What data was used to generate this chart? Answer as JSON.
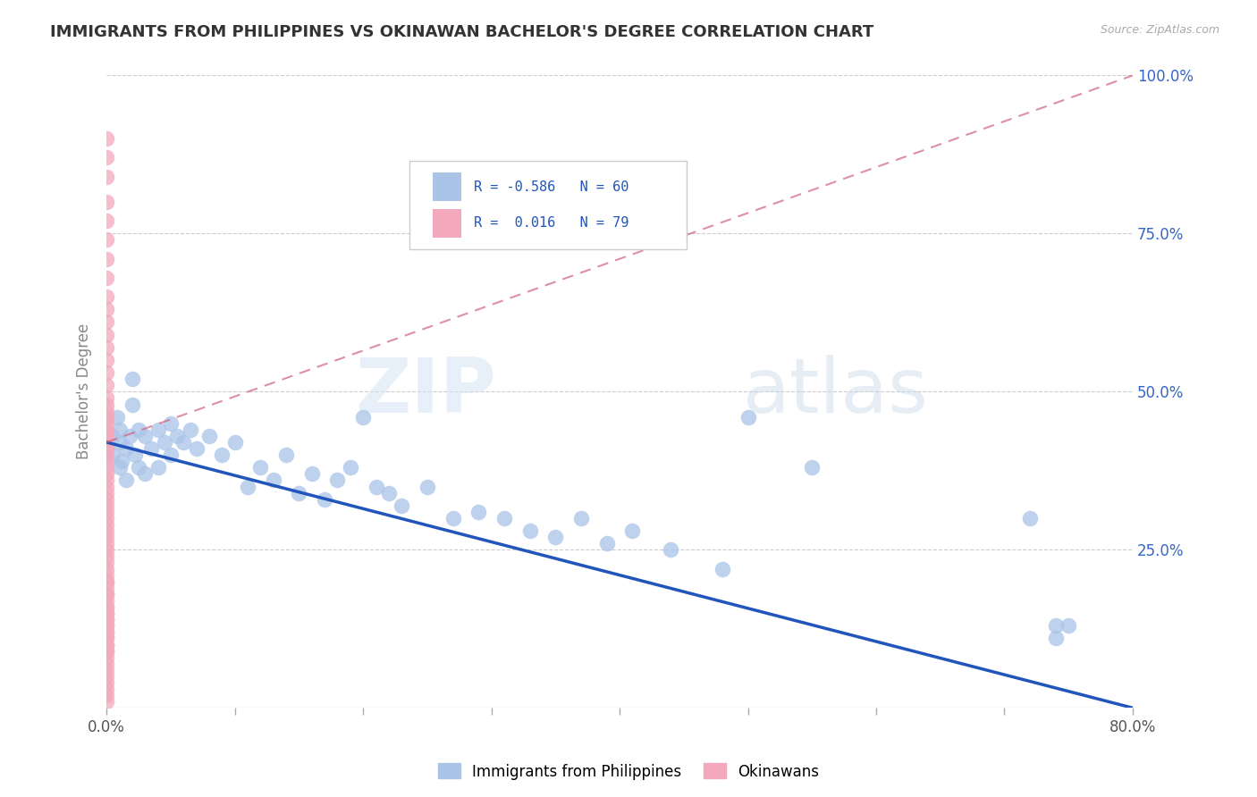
{
  "title": "IMMIGRANTS FROM PHILIPPINES VS OKINAWAN BACHELOR'S DEGREE CORRELATION CHART",
  "source": "Source: ZipAtlas.com",
  "ylabel": "Bachelor's Degree",
  "legend_blue_label": "Immigrants from Philippines",
  "legend_pink_label": "Okinawans",
  "blue_R": -0.586,
  "blue_N": 60,
  "pink_R": 0.016,
  "pink_N": 79,
  "blue_color": "#aac4e8",
  "pink_color": "#f4a8bc",
  "blue_line_color": "#2255bb",
  "pink_line_color": "#d06080",
  "watermark_zip": "ZIP",
  "watermark_atlas": "atlas",
  "xlim": [
    0.0,
    0.8
  ],
  "ylim": [
    0.0,
    1.0
  ],
  "xticks": [
    0.0,
    0.1,
    0.2,
    0.3,
    0.4,
    0.5,
    0.6,
    0.7,
    0.8
  ],
  "xtick_labels_show": [
    "0.0%",
    "",
    "",
    "",
    "",
    "",
    "",
    "",
    "80.0%"
  ],
  "yticks": [
    0.0,
    0.25,
    0.5,
    0.75,
    1.0
  ],
  "ytick_labels_right": [
    "",
    "25.0%",
    "50.0%",
    "75.0%",
    "100.0%"
  ],
  "blue_line_x": [
    0.0,
    0.8
  ],
  "blue_line_y": [
    0.42,
    0.0
  ],
  "pink_line_x": [
    0.0,
    0.8
  ],
  "pink_line_y": [
    0.42,
    1.0
  ],
  "blue_scatter_x": [
    0.005,
    0.005,
    0.008,
    0.01,
    0.01,
    0.01,
    0.012,
    0.015,
    0.015,
    0.018,
    0.02,
    0.02,
    0.022,
    0.025,
    0.025,
    0.03,
    0.03,
    0.035,
    0.04,
    0.04,
    0.045,
    0.05,
    0.05,
    0.055,
    0.06,
    0.065,
    0.07,
    0.08,
    0.09,
    0.1,
    0.11,
    0.12,
    0.13,
    0.14,
    0.15,
    0.16,
    0.17,
    0.18,
    0.19,
    0.2,
    0.21,
    0.22,
    0.23,
    0.25,
    0.27,
    0.29,
    0.31,
    0.33,
    0.35,
    0.37,
    0.39,
    0.41,
    0.44,
    0.48,
    0.5,
    0.55,
    0.72,
    0.74,
    0.74,
    0.75
  ],
  "blue_scatter_y": [
    0.43,
    0.4,
    0.46,
    0.42,
    0.38,
    0.44,
    0.39,
    0.41,
    0.36,
    0.43,
    0.52,
    0.48,
    0.4,
    0.44,
    0.38,
    0.43,
    0.37,
    0.41,
    0.44,
    0.38,
    0.42,
    0.45,
    0.4,
    0.43,
    0.42,
    0.44,
    0.41,
    0.43,
    0.4,
    0.42,
    0.35,
    0.38,
    0.36,
    0.4,
    0.34,
    0.37,
    0.33,
    0.36,
    0.38,
    0.46,
    0.35,
    0.34,
    0.32,
    0.35,
    0.3,
    0.31,
    0.3,
    0.28,
    0.27,
    0.3,
    0.26,
    0.28,
    0.25,
    0.22,
    0.46,
    0.38,
    0.3,
    0.13,
    0.11,
    0.13
  ],
  "pink_scatter_x": [
    0.0,
    0.0,
    0.0,
    0.0,
    0.0,
    0.0,
    0.0,
    0.0,
    0.0,
    0.0,
    0.0,
    0.0,
    0.0,
    0.0,
    0.0,
    0.0,
    0.0,
    0.0,
    0.0,
    0.0,
    0.0,
    0.0,
    0.0,
    0.0,
    0.0,
    0.0,
    0.0,
    0.0,
    0.0,
    0.0,
    0.0,
    0.0,
    0.0,
    0.0,
    0.0,
    0.0,
    0.0,
    0.0,
    0.0,
    0.0,
    0.0,
    0.0,
    0.0,
    0.0,
    0.0,
    0.0,
    0.0,
    0.0,
    0.0,
    0.0,
    0.0,
    0.0,
    0.0,
    0.0,
    0.0,
    0.0,
    0.0,
    0.0,
    0.0,
    0.0,
    0.0,
    0.0,
    0.0,
    0.0,
    0.0,
    0.0,
    0.0,
    0.0,
    0.0,
    0.0,
    0.0,
    0.0,
    0.0,
    0.0,
    0.0,
    0.0,
    0.0,
    0.0,
    0.0
  ],
  "pink_scatter_y": [
    0.9,
    0.87,
    0.84,
    0.8,
    0.77,
    0.74,
    0.71,
    0.68,
    0.65,
    0.63,
    0.61,
    0.59,
    0.57,
    0.55,
    0.53,
    0.51,
    0.49,
    0.47,
    0.46,
    0.45,
    0.44,
    0.43,
    0.42,
    0.41,
    0.4,
    0.39,
    0.38,
    0.37,
    0.36,
    0.35,
    0.34,
    0.33,
    0.32,
    0.31,
    0.3,
    0.29,
    0.28,
    0.27,
    0.26,
    0.25,
    0.24,
    0.23,
    0.22,
    0.21,
    0.2,
    0.19,
    0.18,
    0.17,
    0.16,
    0.15,
    0.14,
    0.13,
    0.12,
    0.11,
    0.1,
    0.09,
    0.08,
    0.07,
    0.06,
    0.05,
    0.04,
    0.03,
    0.2,
    0.18,
    0.16,
    0.15,
    0.14,
    0.13,
    0.12,
    0.11,
    0.1,
    0.09,
    0.48,
    0.46,
    0.44,
    0.43,
    0.41,
    0.02,
    0.01
  ],
  "grid_color": "#cccccc",
  "background_color": "#ffffff",
  "title_color": "#333333",
  "axis_label_color": "#888888",
  "tick_label_color_right": "#3366cc",
  "tick_label_color_bottom": "#555555"
}
